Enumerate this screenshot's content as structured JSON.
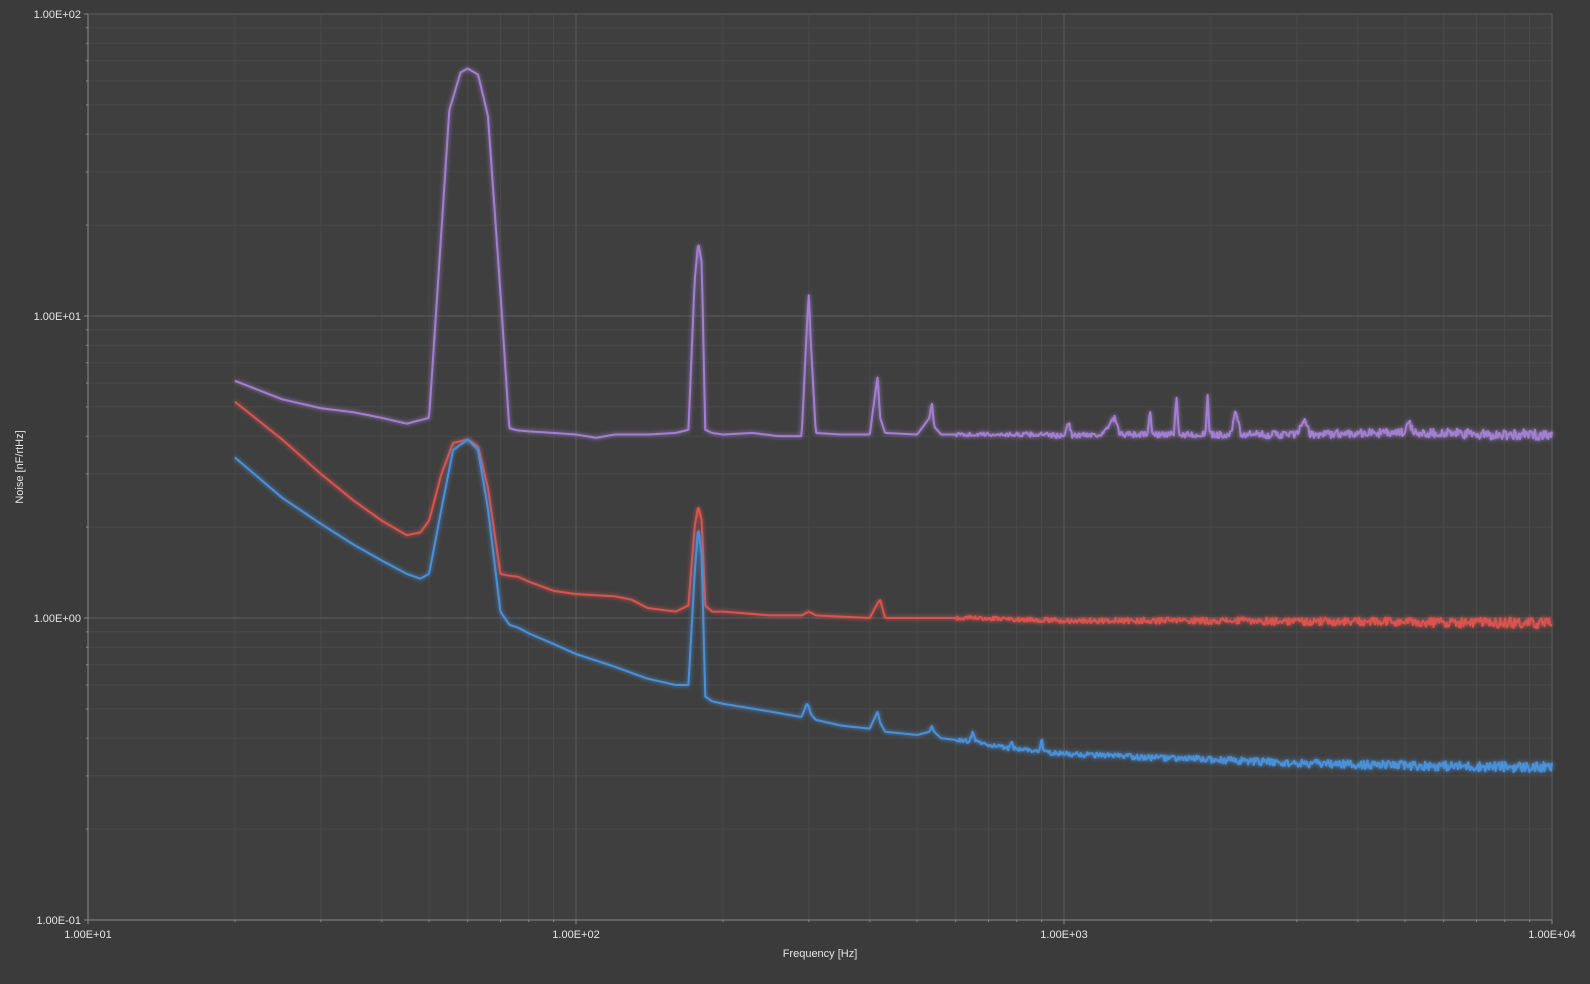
{
  "colors": {
    "background": "#3b3b3b",
    "plot_background": "#3f3f3f",
    "grid_major": "#5c5c5c",
    "grid_minor": "#4a4a4a",
    "axis": "#8a8a8a",
    "text": "#e6e6e6"
  },
  "chart_data": {
    "type": "line",
    "title": "",
    "xlabel": "Frequency [Hz]",
    "ylabel": "Noise [nF/rtHz]",
    "xscale": "log",
    "yscale": "log",
    "xlim": [
      10,
      10000
    ],
    "ylim": [
      0.1,
      100
    ],
    "grid": true,
    "legend": "none",
    "x_tick_labels": [
      "1.00E+01",
      "1.00E+02",
      "1.00E+03",
      "1.00E+04"
    ],
    "y_tick_labels": [
      "1.00E-01",
      "1.00E+00",
      "1.00E+01",
      "1.00E+02"
    ],
    "series": [
      {
        "color": "#a27fd0",
        "x": [
          20,
          25,
          30,
          35,
          40,
          45,
          50,
          52,
          55,
          58,
          60,
          63,
          66,
          70,
          73,
          76,
          80,
          90,
          100,
          110,
          120,
          140,
          160,
          170,
          175,
          178,
          181,
          184,
          190,
          200,
          230,
          260,
          290,
          297,
          300,
          303,
          310,
          350,
          400,
          410,
          415,
          420,
          430,
          500,
          530,
          536,
          542,
          560,
          650,
          700,
          800,
          900,
          1000,
          1020,
          1040,
          1100,
          1200,
          1270,
          1300,
          1400,
          1480,
          1500,
          1520,
          1600,
          1680,
          1700,
          1720,
          1800,
          1880,
          1950,
          1970,
          1990,
          2100,
          2200,
          2250,
          2300,
          2500,
          3000,
          3100,
          3200,
          4000,
          5000,
          5100,
          5200,
          6000,
          7000,
          8000,
          9000,
          10000
        ],
        "values": [
          6.1,
          5.3,
          4.95,
          4.8,
          4.6,
          4.4,
          4.6,
          12,
          48,
          64,
          66,
          63,
          46,
          12,
          4.25,
          4.18,
          4.15,
          4.1,
          4.05,
          3.95,
          4.05,
          4.05,
          4.1,
          4.2,
          13,
          17.5,
          15,
          4.2,
          4.1,
          4.05,
          4.1,
          4.0,
          4.0,
          9,
          11.8,
          8,
          4.1,
          4.05,
          4.05,
          5.5,
          6.3,
          4.6,
          4.1,
          4.05,
          4.6,
          5.2,
          4.3,
          4.05,
          4.05,
          4.05,
          4.05,
          4.05,
          4.0,
          4.5,
          4.0,
          4.05,
          4.05,
          4.6,
          4.05,
          4.05,
          4.05,
          4.8,
          4.05,
          4.05,
          4.05,
          5.4,
          4.05,
          4.05,
          4.05,
          4.05,
          5.4,
          4.05,
          4.05,
          4.05,
          4.9,
          4.05,
          4.05,
          4.05,
          4.5,
          4.05,
          4.1,
          4.1,
          4.5,
          4.1,
          4.1,
          4.05,
          4.05,
          4.05,
          4.05
        ]
      },
      {
        "color": "#d9534f",
        "x": [
          20,
          25,
          30,
          35,
          40,
          45,
          48,
          50,
          53,
          56,
          60,
          63,
          66,
          70,
          73,
          76,
          80,
          90,
          100,
          120,
          130,
          140,
          160,
          170,
          175,
          178,
          181,
          184,
          190,
          200,
          250,
          290,
          300,
          310,
          400,
          415,
          420,
          430,
          500,
          650,
          1000,
          2000,
          5000,
          10000
        ],
        "values": [
          5.2,
          3.9,
          3.0,
          2.45,
          2.1,
          1.88,
          1.92,
          2.1,
          3.0,
          3.8,
          3.9,
          3.7,
          2.7,
          1.4,
          1.38,
          1.37,
          1.32,
          1.23,
          1.2,
          1.18,
          1.15,
          1.08,
          1.05,
          1.1,
          2.0,
          2.35,
          2.1,
          1.1,
          1.05,
          1.05,
          1.02,
          1.02,
          1.05,
          1.02,
          1.0,
          1.12,
          1.15,
          1.0,
          1.0,
          1.0,
          0.98,
          0.98,
          0.97,
          0.96
        ]
      },
      {
        "color": "#4a90d9",
        "x": [
          20,
          25,
          30,
          35,
          40,
          45,
          48,
          50,
          53,
          56,
          60,
          63,
          66,
          70,
          73,
          76,
          80,
          90,
          100,
          120,
          140,
          160,
          170,
          175,
          178,
          181,
          184,
          190,
          200,
          250,
          290,
          297,
          300,
          303,
          310,
          350,
          400,
          410,
          415,
          420,
          430,
          500,
          530,
          536,
          542,
          560,
          640,
          650,
          660,
          700,
          770,
          780,
          790,
          850,
          890,
          900,
          910,
          1000,
          1500,
          2000,
          3000,
          5000,
          10000
        ],
        "values": [
          3.4,
          2.5,
          2.05,
          1.75,
          1.55,
          1.4,
          1.35,
          1.4,
          2.3,
          3.6,
          3.9,
          3.6,
          2.3,
          1.05,
          0.95,
          0.93,
          0.89,
          0.82,
          0.76,
          0.69,
          0.63,
          0.6,
          0.6,
          1.4,
          2.0,
          1.6,
          0.55,
          0.53,
          0.52,
          0.49,
          0.47,
          0.52,
          0.51,
          0.48,
          0.46,
          0.44,
          0.43,
          0.47,
          0.49,
          0.45,
          0.42,
          0.41,
          0.42,
          0.44,
          0.42,
          0.4,
          0.39,
          0.42,
          0.39,
          0.38,
          0.37,
          0.395,
          0.37,
          0.365,
          0.36,
          0.4,
          0.36,
          0.355,
          0.345,
          0.34,
          0.33,
          0.325,
          0.32
        ]
      }
    ]
  }
}
